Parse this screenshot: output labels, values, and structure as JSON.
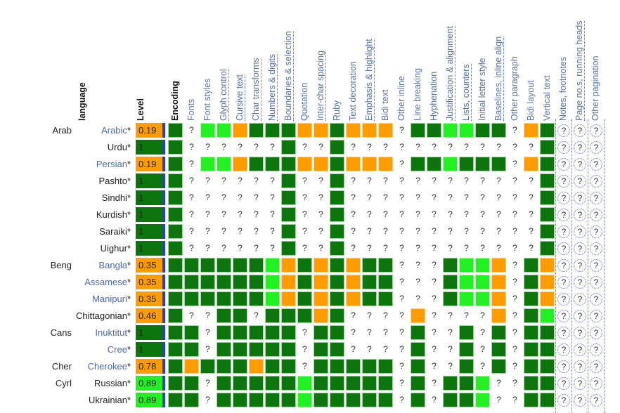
{
  "table_header": {
    "language_label": "language",
    "level_label": "Level",
    "columns": [
      {
        "label": "Encoding",
        "style": "bold"
      },
      {
        "label": "Fonts",
        "style": "plain"
      },
      {
        "label": "Font styles",
        "style": "plain"
      },
      {
        "label": "Glyph control",
        "style": "link"
      },
      {
        "label": "Cursive text",
        "style": "link"
      },
      {
        "label": "Char transforms",
        "style": "link"
      },
      {
        "label": "Numbers & digits",
        "style": "link"
      },
      {
        "label": "Boundaries & selection",
        "style": "link"
      },
      {
        "label": "Quotation",
        "style": "plain"
      },
      {
        "label": "Inter-char spacing",
        "style": "link"
      },
      {
        "label": "Ruby",
        "style": "plain"
      },
      {
        "label": "Text decoration",
        "style": "plain"
      },
      {
        "label": "Emphasis & highlight",
        "style": "link"
      },
      {
        "label": "Bidi text",
        "style": "plain"
      },
      {
        "label": "Other inline",
        "style": "plain"
      },
      {
        "label": "Line breaking",
        "style": "plain"
      },
      {
        "label": "Hyphenation",
        "style": "plain"
      },
      {
        "label": "Justification & alignment",
        "style": "link"
      },
      {
        "label": "Lists, counters",
        "style": "link"
      },
      {
        "label": "Initial letter style",
        "style": "plain"
      },
      {
        "label": "Baselines, inline align",
        "style": "link"
      },
      {
        "label": "Other paragraph",
        "style": "plain"
      },
      {
        "label": "Bidi layout",
        "style": "plain"
      },
      {
        "label": "Vertical text",
        "style": "plain"
      },
      {
        "label": "Notes, footnotes",
        "style": "plain"
      },
      {
        "label": "Page no.s, running heads",
        "style": "link"
      },
      {
        "label": "Other pagination",
        "style": "plain"
      }
    ]
  },
  "legend_colors": {
    "dg": "#0c760c",
    "lg": "#22f022",
    "or": "#ff9c00",
    "level_bar": "#2240d4"
  },
  "rows": [
    {
      "script": "Arab",
      "name": "Arabic",
      "link": true,
      "level": "0.19",
      "lvl_color": "#ff9c00",
      "cells": "DQLLODDDOODOOOQDDLLDDQODTTT"
    },
    {
      "script": "",
      "name": "Urdu",
      "link": false,
      "level": "1",
      "lvl_color": "#0c760c",
      "cells": "DQQQQQQDQQDQQQQQQQQQQQQDTTT"
    },
    {
      "script": "",
      "name": "Persian",
      "link": true,
      "level": "0.19",
      "lvl_color": "#ff9c00",
      "cells": "DQLLODDDOODOOOQDDLDDDQODTTT"
    },
    {
      "script": "",
      "name": "Pashto",
      "link": false,
      "level": "1",
      "lvl_color": "#0c760c",
      "cells": "DQQQQQQDQQDQQQQQQQQQQQQDTTT"
    },
    {
      "script": "",
      "name": "Sindhi",
      "link": false,
      "level": "1",
      "lvl_color": "#0c760c",
      "cells": "DQQQQQQDQQDQQQQQQQQQQQQDTTT"
    },
    {
      "script": "",
      "name": "Kurdish",
      "link": false,
      "level": "1",
      "lvl_color": "#0c760c",
      "cells": "DQQQQQQDQQDQQQQQQQQQQQQDTTT"
    },
    {
      "script": "",
      "name": "Saraiki",
      "link": false,
      "level": "1",
      "lvl_color": "#0c760c",
      "cells": "DQQQQQQDQQDQQQQQQQQQQQQDTTT"
    },
    {
      "script": "",
      "name": "Uighur",
      "link": false,
      "level": "1",
      "lvl_color": "#0c760c",
      "cells": "DQQQQQQDQQDQQQQQQQQQQQQDTTT"
    },
    {
      "script": "Beng",
      "name": "Bangla",
      "link": true,
      "level": "0.35",
      "lvl_color": "#ff9c00",
      "cells": "DDDDDDLODODODDQQQDLLOQDOTTT"
    },
    {
      "script": "",
      "name": "Assamese",
      "link": true,
      "level": "0.35",
      "lvl_color": "#ff9c00",
      "cells": "DDDDDDLODODODDQQQDLLOQDOTTT"
    },
    {
      "script": "",
      "name": "Manipuri",
      "link": true,
      "level": "0.35",
      "lvl_color": "#ff9c00",
      "cells": "DDDDDDLODODODDQQQDLLOQDOTTT"
    },
    {
      "script": "",
      "name": "Chittagonian",
      "link": false,
      "level": "0.46",
      "lvl_color": "#ff9c00",
      "cells": "DQQDDQDDDODQQQQOQQQQOQDLTTT"
    },
    {
      "script": "Cans",
      "name": "Inuktitut",
      "link": true,
      "level": "1",
      "lvl_color": "#0c760c",
      "cells": "DDQDDDDDQDDQQQQDQQDQDQDDTTT"
    },
    {
      "script": "",
      "name": "Cree",
      "link": true,
      "level": "1",
      "lvl_color": "#0c760c",
      "cells": "DDQDDDDDQDDQQQQDQQDQDQDDTTT"
    },
    {
      "script": "Cher",
      "name": "Cherokee",
      "link": true,
      "level": "0.78",
      "lvl_color": "#ff9c00",
      "cells": "DODDDODDQDDDDDQDQQDQDQDDTTT"
    },
    {
      "script": "Cyrl",
      "name": "Russian",
      "link": false,
      "level": "0.89",
      "lvl_color": "#22f022",
      "cells": "DDQDDDDDLDDDDDQDQDDLQQDDTTT"
    },
    {
      "script": "",
      "name": "Ukrainian",
      "link": false,
      "level": "0.89",
      "lvl_color": "#22f022",
      "cells": "DDQDDDDDLDDDDDQDQDDLQQDDTTT"
    }
  ]
}
